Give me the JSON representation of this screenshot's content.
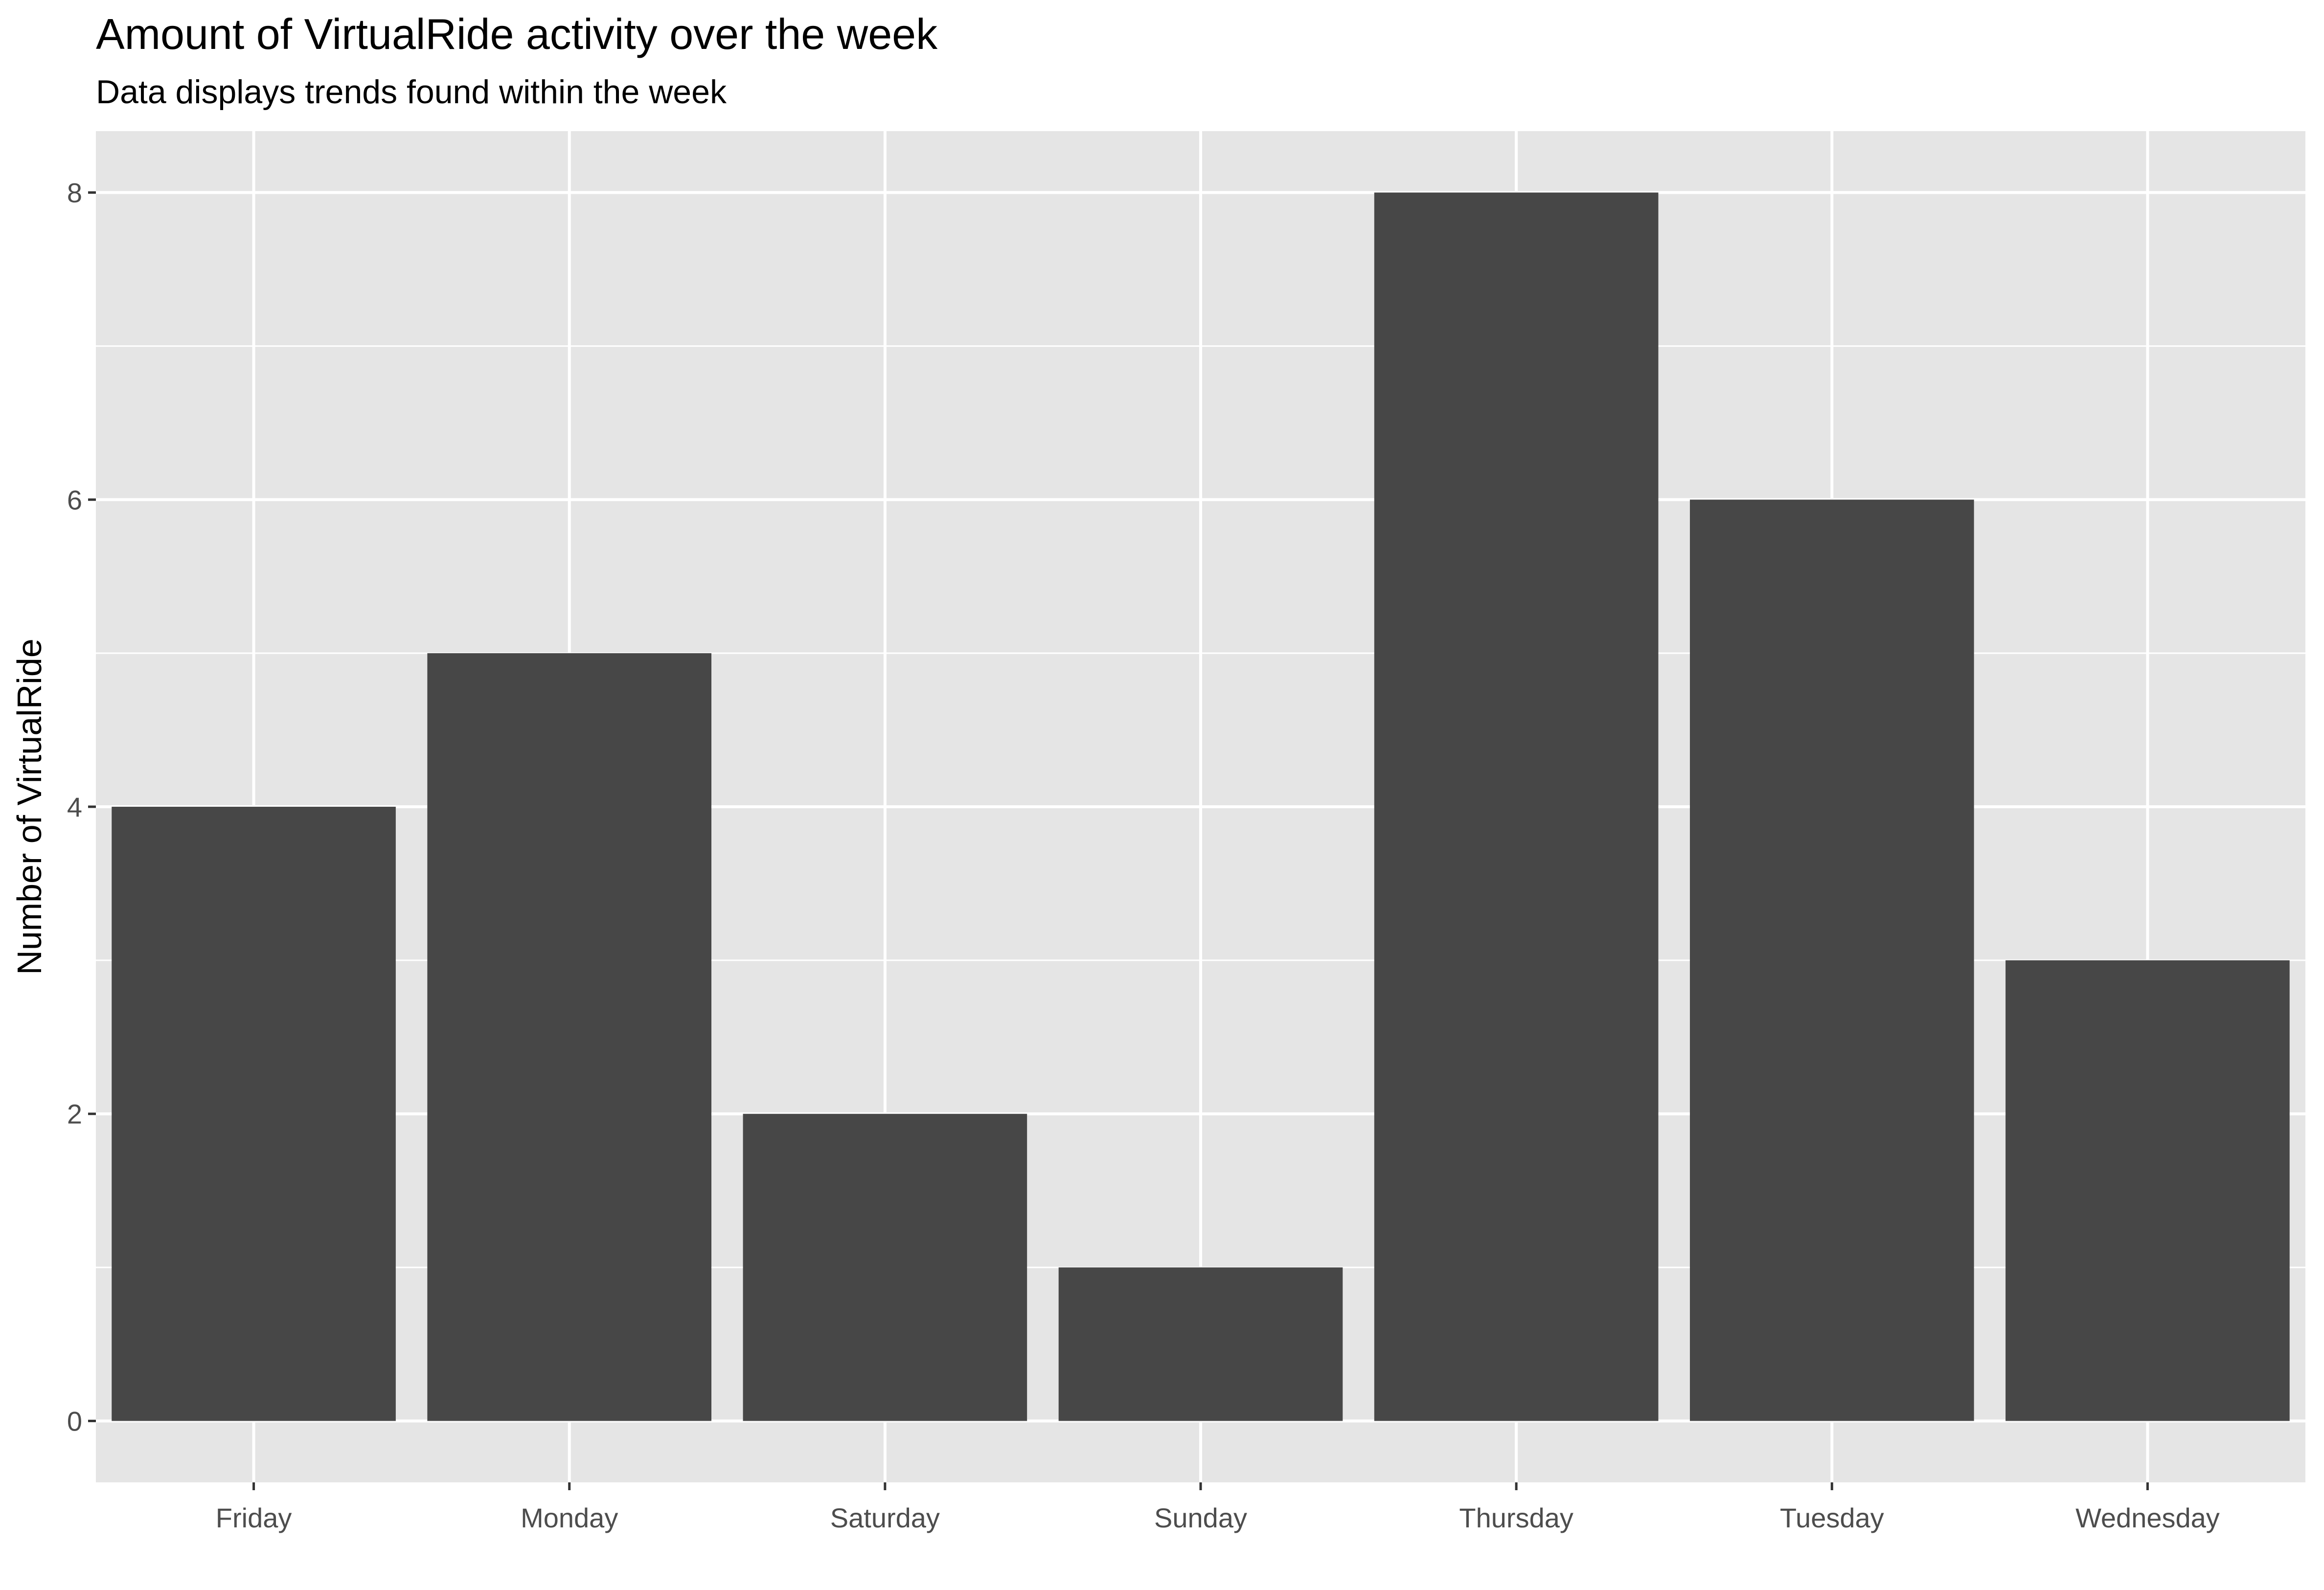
{
  "chart_data": {
    "type": "bar",
    "title": "Amount of VirtualRide activity over the week",
    "subtitle": "Data displays trends found within the week",
    "xlabel": "",
    "ylabel": "Number of VirtualRide",
    "categories": [
      "Friday",
      "Monday",
      "Saturday",
      "Sunday",
      "Thursday",
      "Tuesday",
      "Wednesday"
    ],
    "values": [
      4,
      5,
      2,
      1,
      8,
      6,
      3
    ],
    "ylim": [
      -0.4,
      8.4
    ],
    "y_ticks": [
      0,
      2,
      4,
      6,
      8
    ],
    "y_minor_ticks": [
      1,
      3,
      5,
      7
    ],
    "grid": true,
    "legend": "none",
    "colors": {
      "bar": "#474747",
      "panel": "#e5e5e5",
      "grid": "#ffffff",
      "text": "#000000",
      "tick_text": "#4d4d4d"
    }
  }
}
